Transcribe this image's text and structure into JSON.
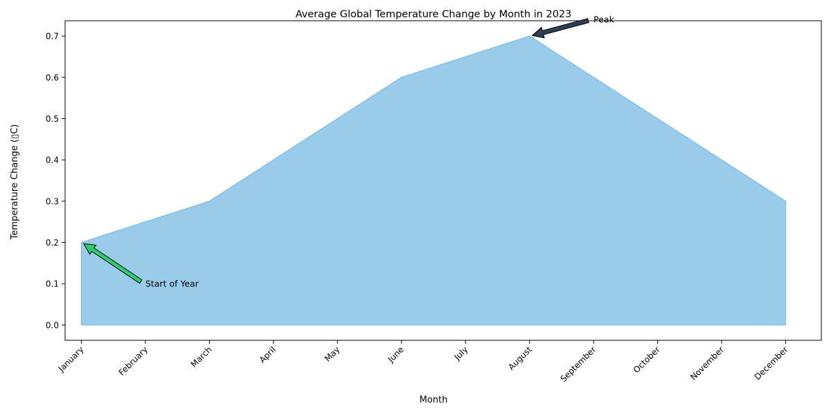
{
  "chart_data": {
    "type": "area",
    "title": "Average Global Temperature Change by Month in 2023",
    "xlabel": "Month",
    "ylabel": "Temperature Change (▯C)",
    "categories": [
      "January",
      "February",
      "March",
      "April",
      "May",
      "June",
      "July",
      "August",
      "September",
      "October",
      "November",
      "December"
    ],
    "values": [
      0.2,
      0.25,
      0.3,
      0.4,
      0.5,
      0.6,
      0.65,
      0.7,
      0.6,
      0.5,
      0.4,
      0.3
    ],
    "ylim": [
      -0.037,
      0.737
    ],
    "yticks": [
      "0.0",
      "0.1",
      "0.2",
      "0.3",
      "0.4",
      "0.5",
      "0.6",
      "0.7"
    ],
    "grid": false,
    "fill_color": "#99cbeb",
    "line_color": "#7bbbe6",
    "annotations": [
      {
        "text": "Peak",
        "x": "August",
        "y": 0.7,
        "text_x": "September",
        "text_y": 0.74,
        "arrow_color": "#2c3e50"
      },
      {
        "text": "Start of Year",
        "x": "January",
        "y": 0.2,
        "text_x": "February",
        "text_y": 0.1,
        "arrow_color": "#2ecc71"
      }
    ]
  }
}
